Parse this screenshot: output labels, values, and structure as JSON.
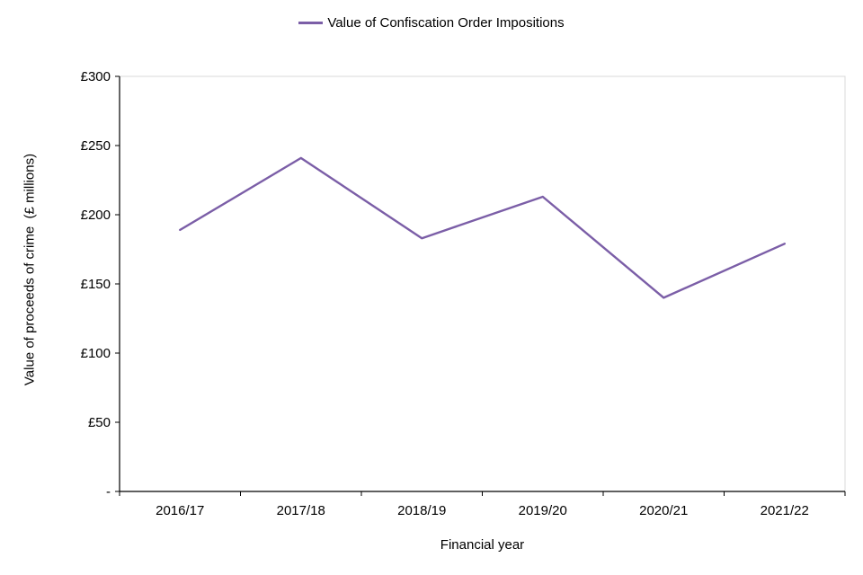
{
  "chart_data": {
    "type": "line",
    "title": "",
    "legend": "Value of Confiscation Order Impositions",
    "categories": [
      "2016/17",
      "2017/18",
      "2018/19",
      "2019/20",
      "2020/21",
      "2021/22"
    ],
    "series": [
      {
        "name": "Value of Confiscation Order Impositions",
        "values": [
          189,
          241,
          183,
          213,
          140,
          179
        ],
        "color": "#7B5EA7"
      }
    ],
    "xlabel": "Financial year",
    "ylabel": "Value of proceeds of crime  (£ millions)",
    "ylim": [
      0,
      300
    ],
    "ytick_step": 50,
    "ytick_labels": [
      "-",
      "£50",
      "£100",
      "£150",
      "£200",
      "£250",
      "£300"
    ],
    "grid": false,
    "legend_position": "top",
    "axis_color": "#000000",
    "border_color": "#D9D9D9",
    "text_color": "#000000"
  }
}
